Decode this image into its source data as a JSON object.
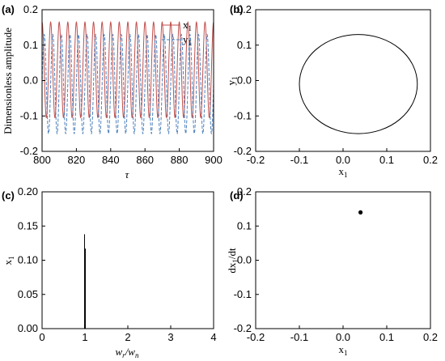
{
  "chart_data": [
    {
      "panel": "(a)",
      "type": "line",
      "xlabel": "τ",
      "ylabel": "Dimensionless amplitude",
      "xlim": [
        800,
        900
      ],
      "ylim": [
        -0.2,
        0.2
      ],
      "xticks": [
        "800",
        "820",
        "840",
        "860",
        "880",
        "900"
      ],
      "yticks": [
        "-0.2",
        "-0.1",
        "0.0",
        "0.1",
        "0.2"
      ],
      "legend_position": "top-right",
      "series": [
        {
          "name": "x",
          "name_subscript": "1",
          "color": "#c0504d",
          "style": "solid",
          "center": 0.03,
          "amplitude": 0.135,
          "period": 5.0,
          "phase": 0.0
        },
        {
          "name": "y",
          "name_subscript": "1",
          "color": "#4f81bd",
          "style": "dashed",
          "center": -0.01,
          "amplitude": 0.14,
          "period": 5.0,
          "phase": 1.25
        }
      ]
    },
    {
      "panel": "(b)",
      "type": "line",
      "xlabel": "x",
      "xlabel_subscript": "1",
      "ylabel": "y",
      "ylabel_subscript": "1",
      "xlim": [
        -0.2,
        0.2
      ],
      "ylim": [
        -0.2,
        0.2
      ],
      "xticks": [
        "-0.2",
        "-0.1",
        "0.0",
        "0.1",
        "0.2"
      ],
      "yticks": [
        "-0.2",
        "-0.1",
        "0.0",
        "0.1",
        "0.2"
      ],
      "orbit": {
        "center_x": 0.035,
        "center_y": -0.01,
        "radius_x": 0.135,
        "radius_y": 0.14
      }
    },
    {
      "panel": "(c)",
      "type": "line",
      "xlabel": "w",
      "xlabel_sub1": "r",
      "xlabel_sep": "/w",
      "xlabel_sub2": "n",
      "ylabel": "x",
      "ylabel_subscript": "1",
      "xlim": [
        0,
        4
      ],
      "ylim": [
        0,
        0.2
      ],
      "xticks": [
        "0",
        "1",
        "2",
        "3",
        "4"
      ],
      "yticks": [
        "0.00",
        "0.05",
        "0.10",
        "0.15",
        "0.20"
      ],
      "peaks": [
        {
          "x": 0.99,
          "y": 0.138
        },
        {
          "x": 1.01,
          "y": 0.117
        }
      ]
    },
    {
      "panel": "(d)",
      "type": "scatter",
      "xlabel": "x",
      "xlabel_subscript": "1",
      "ylabel": "dx",
      "ylabel_subscript": "1",
      "ylabel_suffix": "/dt",
      "xlim": [
        -0.2,
        0.2
      ],
      "ylim": [
        -0.2,
        0.2
      ],
      "xticks": [
        "-0.2",
        "-0.1",
        "0.0",
        "0.1",
        "0.2"
      ],
      "yticks": [
        "-0.2",
        "-0.1",
        "0.0",
        "0.1",
        "0.2"
      ],
      "points": [
        {
          "x": 0.04,
          "y": 0.14
        }
      ]
    }
  ]
}
